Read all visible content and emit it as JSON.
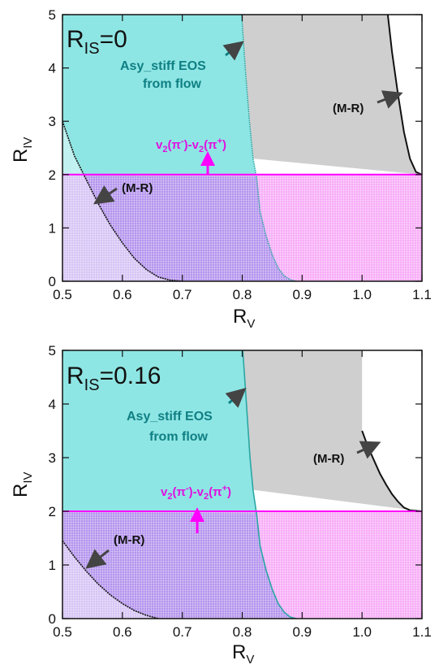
{
  "colors": {
    "cyan": "#8ee6e4",
    "cyan_edge": "#2aa6a4",
    "gray": "#cfcfcf",
    "magenta": "#f066f0",
    "magenta_line": "#ff00ff",
    "overlap": "#c0a9ea",
    "teal_text": "#0f7f83",
    "arrow": "#444444"
  },
  "chart_data": [
    {
      "type": "area",
      "panel_label": {
        "main": "R",
        "sub": "IS",
        "value": "=0"
      },
      "xlabel": {
        "main": "R",
        "sub": "V"
      },
      "ylabel": {
        "main": "R",
        "sub": "IV"
      },
      "xlim": [
        0.5,
        1.1
      ],
      "ylim": [
        0,
        5
      ],
      "x_ticks": [
        "0.5",
        "0.6",
        "0.7",
        "0.8",
        "0.9",
        "1.0",
        "1.1"
      ],
      "y_ticks": [
        "0",
        "1",
        "2",
        "3",
        "4",
        "5"
      ],
      "annotations": {
        "asy_line1": "Asy_stiff EOS",
        "asy_line2": "from flow",
        "mr_upper": "(M-R)",
        "mr_lower": "(M-R)",
        "v2": {
          "a": "v",
          "a_sub": "2",
          "a_arg": "(π",
          "a_sup": "-",
          "mid": ")-v",
          "b_sub": "2",
          "b_arg": "(π",
          "b_sup": "+",
          "end": ")"
        }
      },
      "v2_constraint_min": 2,
      "asy_stiff_boundary": {
        "x": [
          0.799,
          0.805,
          0.812,
          0.818,
          0.824,
          0.83,
          0.84,
          0.85,
          0.86,
          0.87,
          0.88,
          0.89
        ],
        "y": [
          5.0,
          4.0,
          3.0,
          2.3,
          1.95,
          1.3,
          0.85,
          0.5,
          0.25,
          0.1,
          0.03,
          0.0
        ]
      },
      "mr_low": {
        "x": [
          0.5,
          0.52,
          0.54,
          0.56,
          0.58,
          0.6,
          0.62,
          0.64,
          0.66,
          0.68,
          0.7
        ],
        "y": [
          3.0,
          2.35,
          1.9,
          1.45,
          1.05,
          0.72,
          0.43,
          0.22,
          0.08,
          0.02,
          0.0
        ]
      },
      "mr_high": {
        "x": [
          1.043,
          1.05,
          1.06,
          1.07,
          1.08,
          1.09,
          1.1
        ],
        "y": [
          5.0,
          4.3,
          3.5,
          2.8,
          2.3,
          2.05,
          2.0
        ]
      }
    },
    {
      "type": "area",
      "panel_label": {
        "main": "R",
        "sub": "IS",
        "value": "=0.16"
      },
      "xlabel": {
        "main": "R",
        "sub": "V"
      },
      "ylabel": {
        "main": "R",
        "sub": "IV"
      },
      "xlim": [
        0.5,
        1.1
      ],
      "ylim": [
        0,
        5
      ],
      "x_ticks": [
        "0.5",
        "0.6",
        "0.7",
        "0.8",
        "0.9",
        "1.0",
        "1.1"
      ],
      "y_ticks": [
        "0",
        "1",
        "2",
        "3",
        "4",
        "5"
      ],
      "annotations": {
        "asy_line1": "Asy_stiff EOS",
        "asy_line2": "from flow",
        "mr_upper": "(M-R)",
        "mr_lower": "(M-R)",
        "v2": {
          "a": "v",
          "a_sub": "2",
          "a_arg": "(π",
          "a_sup": "-",
          "mid": ")-v",
          "b_sub": "2",
          "b_arg": "(π",
          "b_sup": "+",
          "end": ")"
        }
      },
      "v2_constraint_min": 2,
      "asy_stiff_boundary": {
        "x": [
          0.801,
          0.807,
          0.813,
          0.818,
          0.824,
          0.83,
          0.84,
          0.85,
          0.86,
          0.87,
          0.88,
          0.89
        ],
        "y": [
          5.0,
          4.0,
          3.0,
          2.4,
          1.95,
          1.35,
          0.9,
          0.55,
          0.28,
          0.12,
          0.03,
          0.0
        ]
      },
      "mr_low": {
        "x": [
          0.5,
          0.52,
          0.54,
          0.56,
          0.58,
          0.6,
          0.62,
          0.64,
          0.66
        ],
        "y": [
          1.45,
          1.15,
          0.88,
          0.64,
          0.44,
          0.28,
          0.15,
          0.06,
          0.0
        ]
      },
      "mr_high": {
        "x": [
          1.0,
          1.01,
          1.02,
          1.03,
          1.04,
          1.05,
          1.06,
          1.07,
          1.08,
          1.1
        ],
        "y": [
          3.5,
          3.2,
          2.95,
          2.7,
          2.5,
          2.32,
          2.18,
          2.07,
          2.02,
          2.0
        ]
      }
    }
  ]
}
